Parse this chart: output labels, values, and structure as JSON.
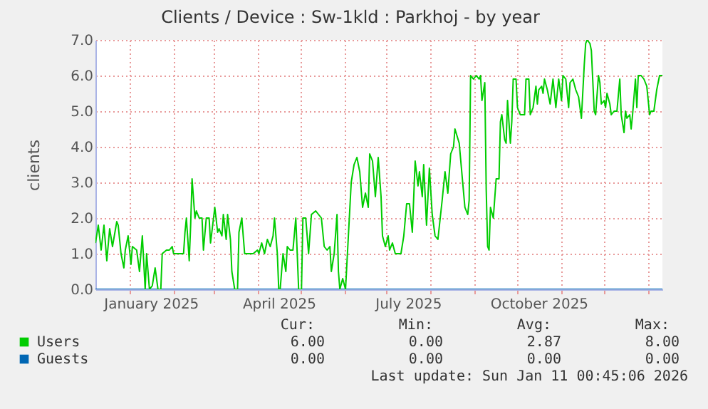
{
  "chart_data": {
    "type": "line",
    "title": "Clients / Device : Sw-1kld : Parkhoj - by year",
    "ylabel": "clients",
    "x": [
      "2024-12-08",
      "2024-12-10",
      "2024-12-12",
      "2024-12-14",
      "2024-12-16",
      "2024-12-18",
      "2024-12-20",
      "2024-12-23",
      "2024-12-24",
      "2024-12-26",
      "2024-12-28",
      "2024-12-29",
      "2024-12-31",
      "2025-01-02",
      "2025-01-03",
      "2025-01-06",
      "2025-01-08",
      "2025-01-10",
      "2025-01-12",
      "2025-01-13",
      "2025-01-15",
      "2025-01-17",
      "2025-01-19",
      "2025-01-21",
      "2025-01-23",
      "2025-01-24",
      "2025-01-27",
      "2025-01-29",
      "2025-01-31",
      "2025-02-01",
      "2025-02-06",
      "2025-02-08",
      "2025-02-09",
      "2025-02-10",
      "2025-02-12",
      "2025-02-13",
      "2025-02-14",
      "2025-02-16",
      "2025-02-17",
      "2025-02-19",
      "2025-02-21",
      "2025-02-22",
      "2025-02-24",
      "2025-02-26",
      "2025-02-27",
      "2025-03-02",
      "2025-03-04",
      "2025-03-05",
      "2025-03-07",
      "2025-03-08",
      "2025-03-10",
      "2025-03-11",
      "2025-03-13",
      "2025-03-14",
      "2025-03-16",
      "2025-03-18",
      "2025-03-19",
      "2025-03-21",
      "2025-03-23",
      "2025-03-26",
      "2025-03-29",
      "2025-04-01",
      "2025-04-02",
      "2025-04-04",
      "2025-04-06",
      "2025-04-08",
      "2025-04-10",
      "2025-04-12",
      "2025-04-13",
      "2025-04-15",
      "2025-04-16",
      "2025-04-17",
      "2025-04-19",
      "2025-04-21",
      "2025-04-22",
      "2025-04-24",
      "2025-04-26",
      "2025-04-28",
      "2025-04-30",
      "2025-05-02",
      "2025-05-03",
      "2025-05-05",
      "2025-05-07",
      "2025-05-09",
      "2025-05-12",
      "2025-05-14",
      "2025-05-16",
      "2025-05-18",
      "2025-05-20",
      "2025-05-22",
      "2025-05-23",
      "2025-05-25",
      "2025-05-27",
      "2025-05-28",
      "2025-05-29",
      "2025-05-31",
      "2025-06-02",
      "2025-06-04",
      "2025-06-06",
      "2025-06-08",
      "2025-06-10",
      "2025-06-12",
      "2025-06-14",
      "2025-06-16",
      "2025-06-18",
      "2025-06-19",
      "2025-06-21",
      "2025-06-23",
      "2025-06-25",
      "2025-06-27",
      "2025-06-28",
      "2025-06-30",
      "2025-07-02",
      "2025-07-03",
      "2025-07-05",
      "2025-07-07",
      "2025-07-09",
      "2025-07-11",
      "2025-07-13",
      "2025-07-15",
      "2025-07-17",
      "2025-07-19",
      "2025-07-21",
      "2025-07-23",
      "2025-07-24",
      "2025-07-26",
      "2025-07-27",
      "2025-07-29",
      "2025-07-31",
      "2025-08-02",
      "2025-08-04",
      "2025-08-06",
      "2025-08-09",
      "2025-08-11",
      "2025-08-13",
      "2025-08-15",
      "2025-08-17",
      "2025-08-18",
      "2025-08-21",
      "2025-08-25",
      "2025-08-27",
      "2025-08-28",
      "2025-08-29",
      "2025-08-31",
      "2025-09-02",
      "2025-09-04",
      "2025-09-05",
      "2025-09-06",
      "2025-09-08",
      "2025-09-09",
      "2025-09-10",
      "2025-09-11",
      "2025-09-12",
      "2025-09-14",
      "2025-09-16",
      "2025-09-18",
      "2025-09-19",
      "2025-09-20",
      "2025-09-22",
      "2025-09-23",
      "2025-09-24",
      "2025-09-26",
      "2025-09-27",
      "2025-09-28",
      "2025-09-30",
      "2025-10-01",
      "2025-10-03",
      "2025-10-06",
      "2025-10-07",
      "2025-10-09",
      "2025-10-10",
      "2025-10-12",
      "2025-10-14",
      "2025-10-15",
      "2025-10-16",
      "2025-10-18",
      "2025-10-19",
      "2025-10-20",
      "2025-10-22",
      "2025-10-24",
      "2025-10-26",
      "2025-10-28",
      "2025-10-30",
      "2025-11-01",
      "2025-11-02",
      "2025-11-04",
      "2025-11-06",
      "2025-11-07",
      "2025-11-09",
      "2025-11-11",
      "2025-11-13",
      "2025-11-15",
      "2025-11-17",
      "2025-11-18",
      "2025-11-19",
      "2025-11-21",
      "2025-11-22",
      "2025-11-24",
      "2025-11-25",
      "2025-11-27",
      "2025-11-28",
      "2025-11-29",
      "2025-12-01",
      "2025-12-02",
      "2025-12-03",
      "2025-12-05",
      "2025-12-06",
      "2025-12-08",
      "2025-12-10",
      "2025-12-12",
      "2025-12-13",
      "2025-12-15",
      "2025-12-16",
      "2025-12-17",
      "2025-12-19",
      "2025-12-20",
      "2025-12-21",
      "2025-12-23",
      "2025-12-24",
      "2025-12-25",
      "2025-12-27",
      "2025-12-29",
      "2025-12-31",
      "2026-01-02",
      "2026-01-03",
      "2026-01-05",
      "2026-01-07",
      "2026-01-09",
      "2026-01-11"
    ],
    "series": [
      {
        "name": "Guests",
        "color": "#0066b3",
        "x": [
          "2024-12-08",
          "2026-01-11"
        ],
        "values": [
          0,
          0
        ]
      },
      {
        "name": "Users",
        "color": "#00cc00",
        "values": [
          1.3,
          1.8,
          1.1,
          1.8,
          0.8,
          1.7,
          1.2,
          1.9,
          1.8,
          1.0,
          0.6,
          1.1,
          1.5,
          0.7,
          1.2,
          1.1,
          0.5,
          1.5,
          0.0,
          1.0,
          0.0,
          0.1,
          0.6,
          0.0,
          0.0,
          1.0,
          1.1,
          1.1,
          1.2,
          1.0,
          1.0,
          1.0,
          1.6,
          2.0,
          0.8,
          1.8,
          3.1,
          2.0,
          2.2,
          2.0,
          2.0,
          1.1,
          2.0,
          2.0,
          1.3,
          2.3,
          1.6,
          1.7,
          1.5,
          2.1,
          1.4,
          2.1,
          1.4,
          0.5,
          0.0,
          0.0,
          1.6,
          2.0,
          1.0,
          1.0,
          1.0,
          1.1,
          1.0,
          1.3,
          1.0,
          1.4,
          1.2,
          1.5,
          2.0,
          1.0,
          0.0,
          0.0,
          1.0,
          0.5,
          1.2,
          1.1,
          1.1,
          2.0,
          0.0,
          0.0,
          2.0,
          2.0,
          1.0,
          2.1,
          2.2,
          2.1,
          2.0,
          1.2,
          1.1,
          1.2,
          0.5,
          1.0,
          2.1,
          0.5,
          0.0,
          0.3,
          0.0,
          1.5,
          3.0,
          3.5,
          3.7,
          3.3,
          2.3,
          2.7,
          2.3,
          3.8,
          3.6,
          2.6,
          3.7,
          2.6,
          1.5,
          1.2,
          1.5,
          1.1,
          1.3,
          1.0,
          1.0,
          1.0,
          1.5,
          2.4,
          2.4,
          1.6,
          3.6,
          2.9,
          3.3,
          2.6,
          3.5,
          1.8,
          3.4,
          2.1,
          1.5,
          1.4,
          2.5,
          3.3,
          2.7,
          3.8,
          4.0,
          4.5,
          4.1,
          2.3,
          2.1,
          2.5,
          6.0,
          5.9,
          6.0,
          5.9,
          6.0,
          5.3,
          5.8,
          2.8,
          1.2,
          1.1,
          2.3,
          2.0,
          3.1,
          3.1,
          4.7,
          4.9,
          4.2,
          4.1,
          5.3,
          4.1,
          4.7,
          5.9,
          5.9,
          5.1,
          4.9,
          4.9,
          5.9,
          5.9,
          4.9,
          5.1,
          5.7,
          5.2,
          5.6,
          5.7,
          5.5,
          5.9,
          5.6,
          5.2,
          5.9,
          5.1,
          5.9,
          5.3,
          6.0,
          5.9,
          5.1,
          5.8,
          5.9,
          5.6,
          5.4,
          4.8,
          6.3,
          6.9,
          7.0,
          6.9,
          6.7,
          5.0,
          4.9,
          6.0,
          5.8,
          5.2,
          5.3,
          5.1,
          5.5,
          5.2,
          4.9,
          5.0,
          5.0,
          5.9,
          4.9,
          4.4,
          5.0,
          4.8,
          4.9,
          4.5,
          4.9,
          5.9,
          5.1,
          6.0,
          6.0,
          5.9,
          5.7,
          4.9,
          5.0,
          5.0,
          5.6,
          6.0,
          6.0
        ]
      }
    ],
    "xlim": [
      "2024-12-08",
      "2026-01-11"
    ],
    "xticks": [
      {
        "value": "2025-01-01",
        "label": null
      },
      {
        "value": "2025-01-16",
        "label": "January 2025"
      },
      {
        "value": "2025-02-01",
        "label": null
      },
      {
        "value": "2025-03-01",
        "label": null
      },
      {
        "value": "2025-04-01",
        "label": null
      },
      {
        "value": "2025-04-16",
        "label": "April 2025"
      },
      {
        "value": "2025-05-01",
        "label": null
      },
      {
        "value": "2025-06-01",
        "label": null
      },
      {
        "value": "2025-07-01",
        "label": null
      },
      {
        "value": "2025-07-16",
        "label": "July 2025"
      },
      {
        "value": "2025-08-01",
        "label": null
      },
      {
        "value": "2025-09-01",
        "label": null
      },
      {
        "value": "2025-10-01",
        "label": null
      },
      {
        "value": "2025-10-16",
        "label": "October 2025"
      },
      {
        "value": "2025-11-01",
        "label": null
      },
      {
        "value": "2025-12-01",
        "label": null
      },
      {
        "value": "2026-01-01",
        "label": null
      }
    ],
    "ylim": [
      0,
      7
    ],
    "yticks": [
      {
        "value": 0,
        "label": "0.0"
      },
      {
        "value": 1,
        "label": "1.0"
      },
      {
        "value": 2,
        "label": "2.0"
      },
      {
        "value": 3,
        "label": "3.0"
      },
      {
        "value": 4,
        "label": "4.0"
      },
      {
        "value": 5,
        "label": "5.0"
      },
      {
        "value": 6,
        "label": "6.0"
      },
      {
        "value": 7,
        "label": "7.0"
      }
    ],
    "grid": true,
    "legend": "bottom",
    "annotations": [
      "Cur:",
      "Min:",
      "Avg:",
      "Max:",
      "6.00",
      "0.00",
      "2.87",
      "8.00",
      "0.00",
      "0.00",
      "0.00",
      "0.00",
      "Last update: Sun Jan 11 00:45:06 2026"
    ]
  }
}
